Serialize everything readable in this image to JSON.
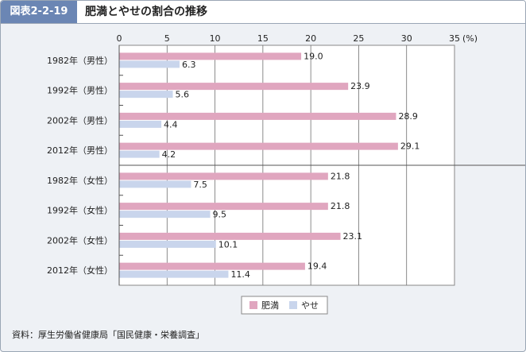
{
  "header": {
    "figure_label": "図表2-2-19",
    "title": "肥満とやせの割合の推移"
  },
  "source": "資料：厚生労働省健康局「国民健康・栄養調査」",
  "colors": {
    "obese": "#e0a6bf",
    "thin": "#c9d5ec",
    "axis": "#555555"
  },
  "chart_data": {
    "type": "bar",
    "orientation": "horizontal",
    "categories": [
      "1982年（男性）",
      "1992年（男性）",
      "2002年（男性）",
      "2012年（男性）",
      "1982年（女性）",
      "1992年（女性）",
      "2002年（女性）",
      "2012年（女性）"
    ],
    "series": [
      {
        "name": "肥満",
        "values": [
          19.0,
          23.9,
          28.9,
          29.1,
          21.8,
          21.8,
          23.1,
          19.4
        ]
      },
      {
        "name": "やせ",
        "values": [
          6.3,
          5.6,
          4.4,
          4.2,
          7.5,
          9.5,
          10.1,
          11.4
        ]
      }
    ],
    "xlim": [
      0,
      35
    ],
    "x_ticks": [
      "0",
      "5",
      "10",
      "15",
      "20",
      "25",
      "30",
      "35"
    ],
    "x_unit": "(%)",
    "value_labels": [
      [
        "19.0",
        "23.9",
        "28.9",
        "29.1",
        "21.8",
        "21.8",
        "23.1",
        "19.4"
      ],
      [
        "6.3",
        "5.6",
        "4.4",
        "4.2",
        "7.5",
        "9.5",
        "10.1",
        "11.4"
      ]
    ],
    "grid": true,
    "legend": "bottom-center"
  }
}
